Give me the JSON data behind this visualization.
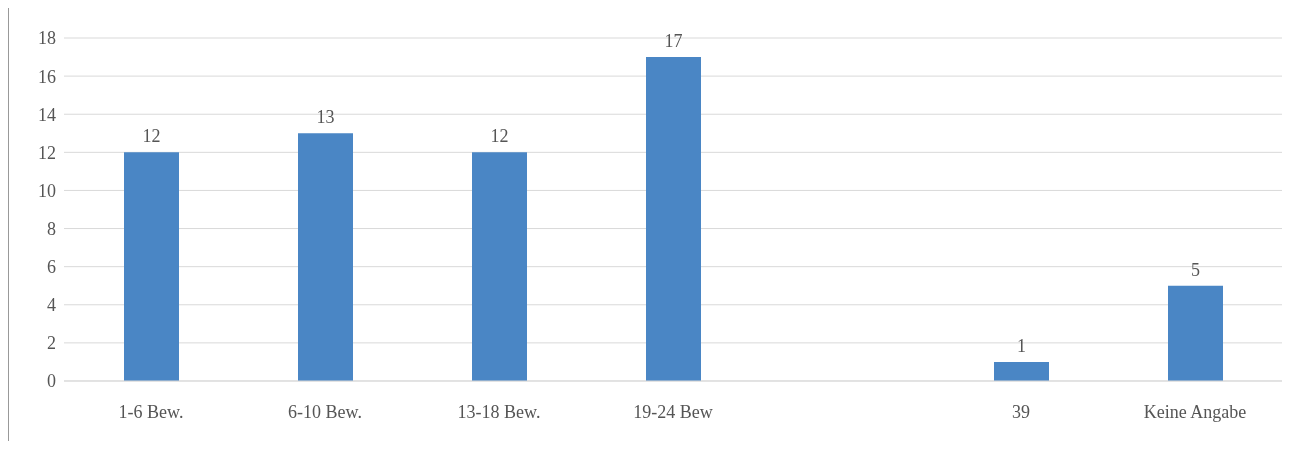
{
  "chart_data": {
    "type": "bar",
    "categories": [
      "1-6 Bew.",
      "6-10 Bew.",
      "13-18 Bew.",
      "19-24 Bew",
      null,
      "39",
      "Keine Angabe"
    ],
    "values": [
      12,
      13,
      12,
      17,
      null,
      1,
      5
    ],
    "color": "#4a86c5",
    "ylim": [
      0,
      18
    ],
    "yticks": [
      0,
      2,
      4,
      6,
      8,
      10,
      12,
      14,
      16,
      18
    ],
    "grid": "y",
    "data_labels": true
  }
}
